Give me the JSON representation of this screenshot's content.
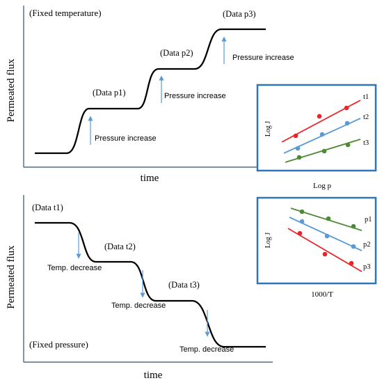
{
  "top_panel": {
    "condition": "(Fixed temperature)",
    "ylabel": "Permeated flux",
    "xlabel": "time",
    "steps": [
      {
        "label": "(Data p1)",
        "arrow_label": "Pressure increase"
      },
      {
        "label": "(Data p2)",
        "arrow_label": "Pressure increase"
      },
      {
        "label": "(Data p3)",
        "arrow_label": "Pressure increase"
      }
    ]
  },
  "bottom_panel": {
    "condition": "(Fixed pressure)",
    "ylabel": "Permeated flux",
    "xlabel": "time",
    "steps": [
      {
        "label": "(Data t1)",
        "arrow_label": "Temp. decrease"
      },
      {
        "label": "(Data t2)",
        "arrow_label": "Temp. decrease"
      },
      {
        "label": "(Data t3)",
        "arrow_label": "Temp. decrease"
      }
    ]
  },
  "inset_top": {
    "xlabel": "Log p",
    "ylabel": "Log J",
    "series": [
      {
        "name": "t1",
        "color": "#e8262a"
      },
      {
        "name": "t2",
        "color": "#5b9bd5"
      },
      {
        "name": "t3",
        "color": "#4c8a34"
      }
    ]
  },
  "inset_bottom": {
    "xlabel": "1000/T",
    "ylabel": "Log J",
    "series": [
      {
        "name": "p1",
        "color": "#4c8a34"
      },
      {
        "name": "p2",
        "color": "#5b9bd5"
      },
      {
        "name": "p3",
        "color": "#e8262a"
      }
    ]
  },
  "colors": {
    "curve": "#000000",
    "arrow": "#5b9bd5",
    "axis": "#2f4f6f",
    "inset_border": "#2e75b6"
  }
}
